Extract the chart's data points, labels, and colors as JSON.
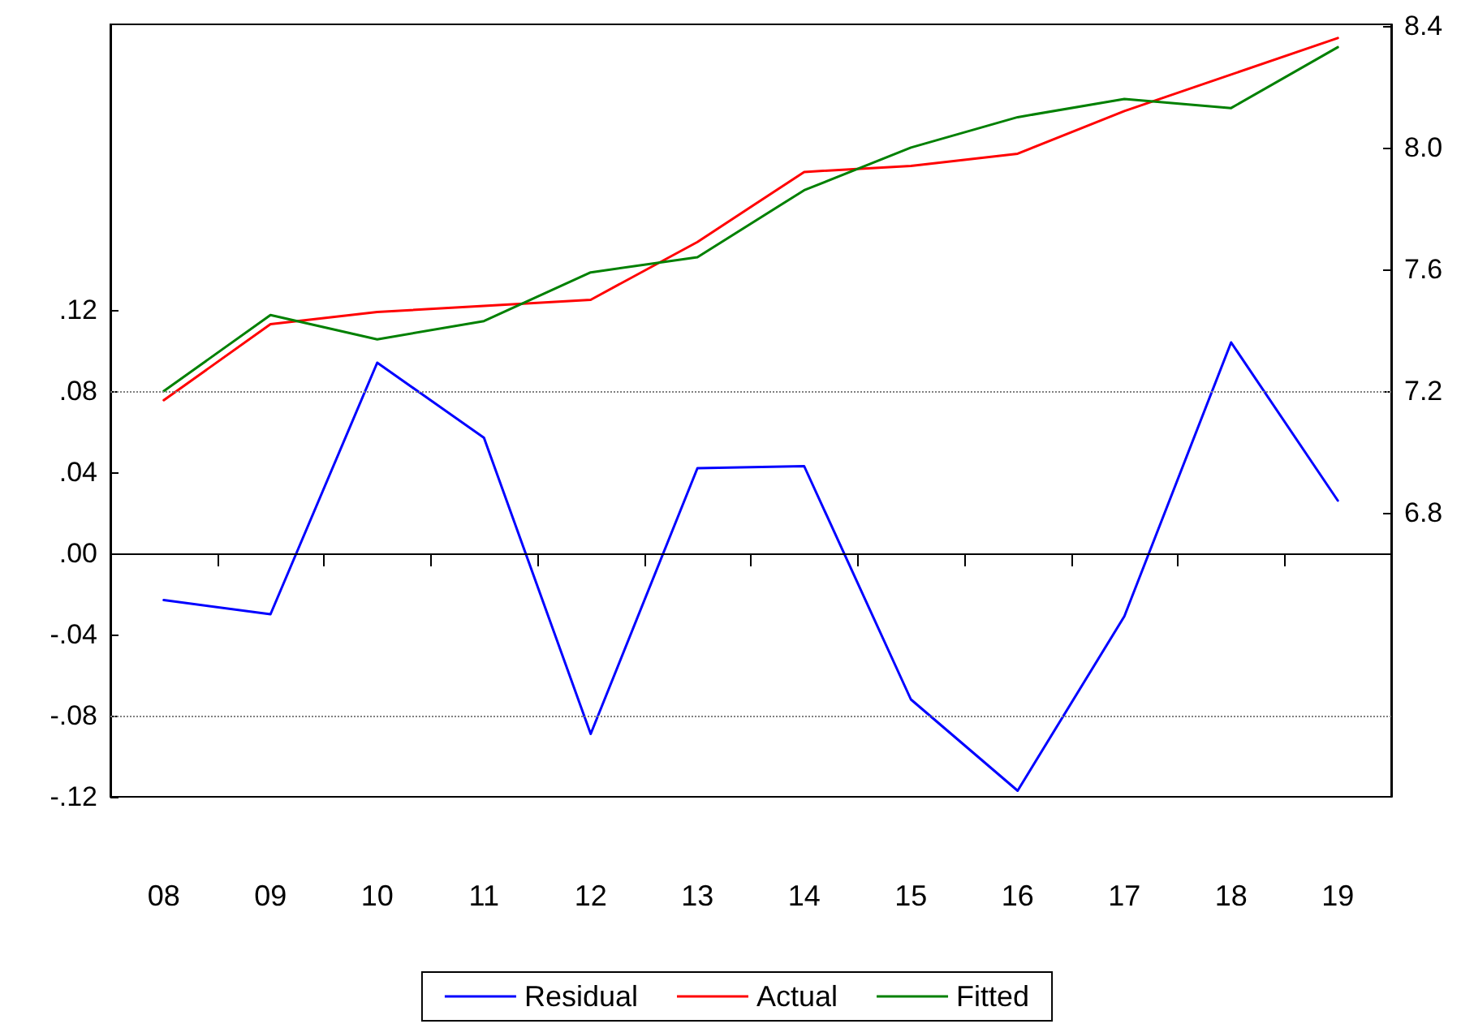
{
  "chart_data": {
    "type": "line",
    "categories": [
      "08",
      "09",
      "10",
      "11",
      "12",
      "13",
      "14",
      "15",
      "16",
      "17",
      "18",
      "19"
    ],
    "series": [
      {
        "name": "Residual",
        "color": "#0000ff",
        "values": [
          -0.023,
          -0.03,
          0.094,
          0.057,
          -0.089,
          0.042,
          0.043,
          -0.072,
          -0.117,
          -0.031,
          0.104,
          0.026
        ]
      },
      {
        "name": "Actual",
        "color": "#ff0000",
        "axis": "y2",
        "values": [
          7.17,
          7.42,
          7.46,
          7.48,
          7.5,
          7.69,
          7.92,
          7.94,
          7.98,
          8.12,
          8.24,
          8.36
        ]
      },
      {
        "name": "Fitted",
        "color": "#008000",
        "axis": "y2",
        "values": [
          7.2,
          7.45,
          7.37,
          7.43,
          7.59,
          7.64,
          7.86,
          8.0,
          8.1,
          8.16,
          8.13,
          8.33
        ]
      }
    ],
    "ylim": [
      -0.12,
      0.2608
    ],
    "yticks": [
      {
        "value": -0.12,
        "label": "-.12"
      },
      {
        "value": -0.08,
        "label": "-.08"
      },
      {
        "value": -0.04,
        "label": "-.04"
      },
      {
        "value": 0,
        "label": ".00"
      },
      {
        "value": 0.04,
        "label": ".04"
      },
      {
        "value": 0.08,
        "label": ".08"
      },
      {
        "value": 0.12,
        "label": ".12"
      }
    ],
    "y2lim": [
      5.867,
      8.405
    ],
    "y2ticks": [
      {
        "value": 6.8,
        "label": "6.8"
      },
      {
        "value": 7.2,
        "label": "7.2"
      },
      {
        "value": 7.6,
        "label": "7.6"
      },
      {
        "value": 8.0,
        "label": "8.0"
      },
      {
        "value": 8.4,
        "label": "8.4"
      }
    ],
    "ref_lines": [
      {
        "axis": "y",
        "value": 0,
        "color": "#000000",
        "line_style": "solid"
      },
      {
        "axis": "y",
        "value": 0.08,
        "color": "#808080",
        "line_style": "dotted"
      },
      {
        "axis": "y",
        "value": -0.08,
        "color": "#808080",
        "line_style": "dotted"
      }
    ],
    "grid": false,
    "legend": "bottom",
    "marker": "none",
    "line_style": "solid"
  }
}
